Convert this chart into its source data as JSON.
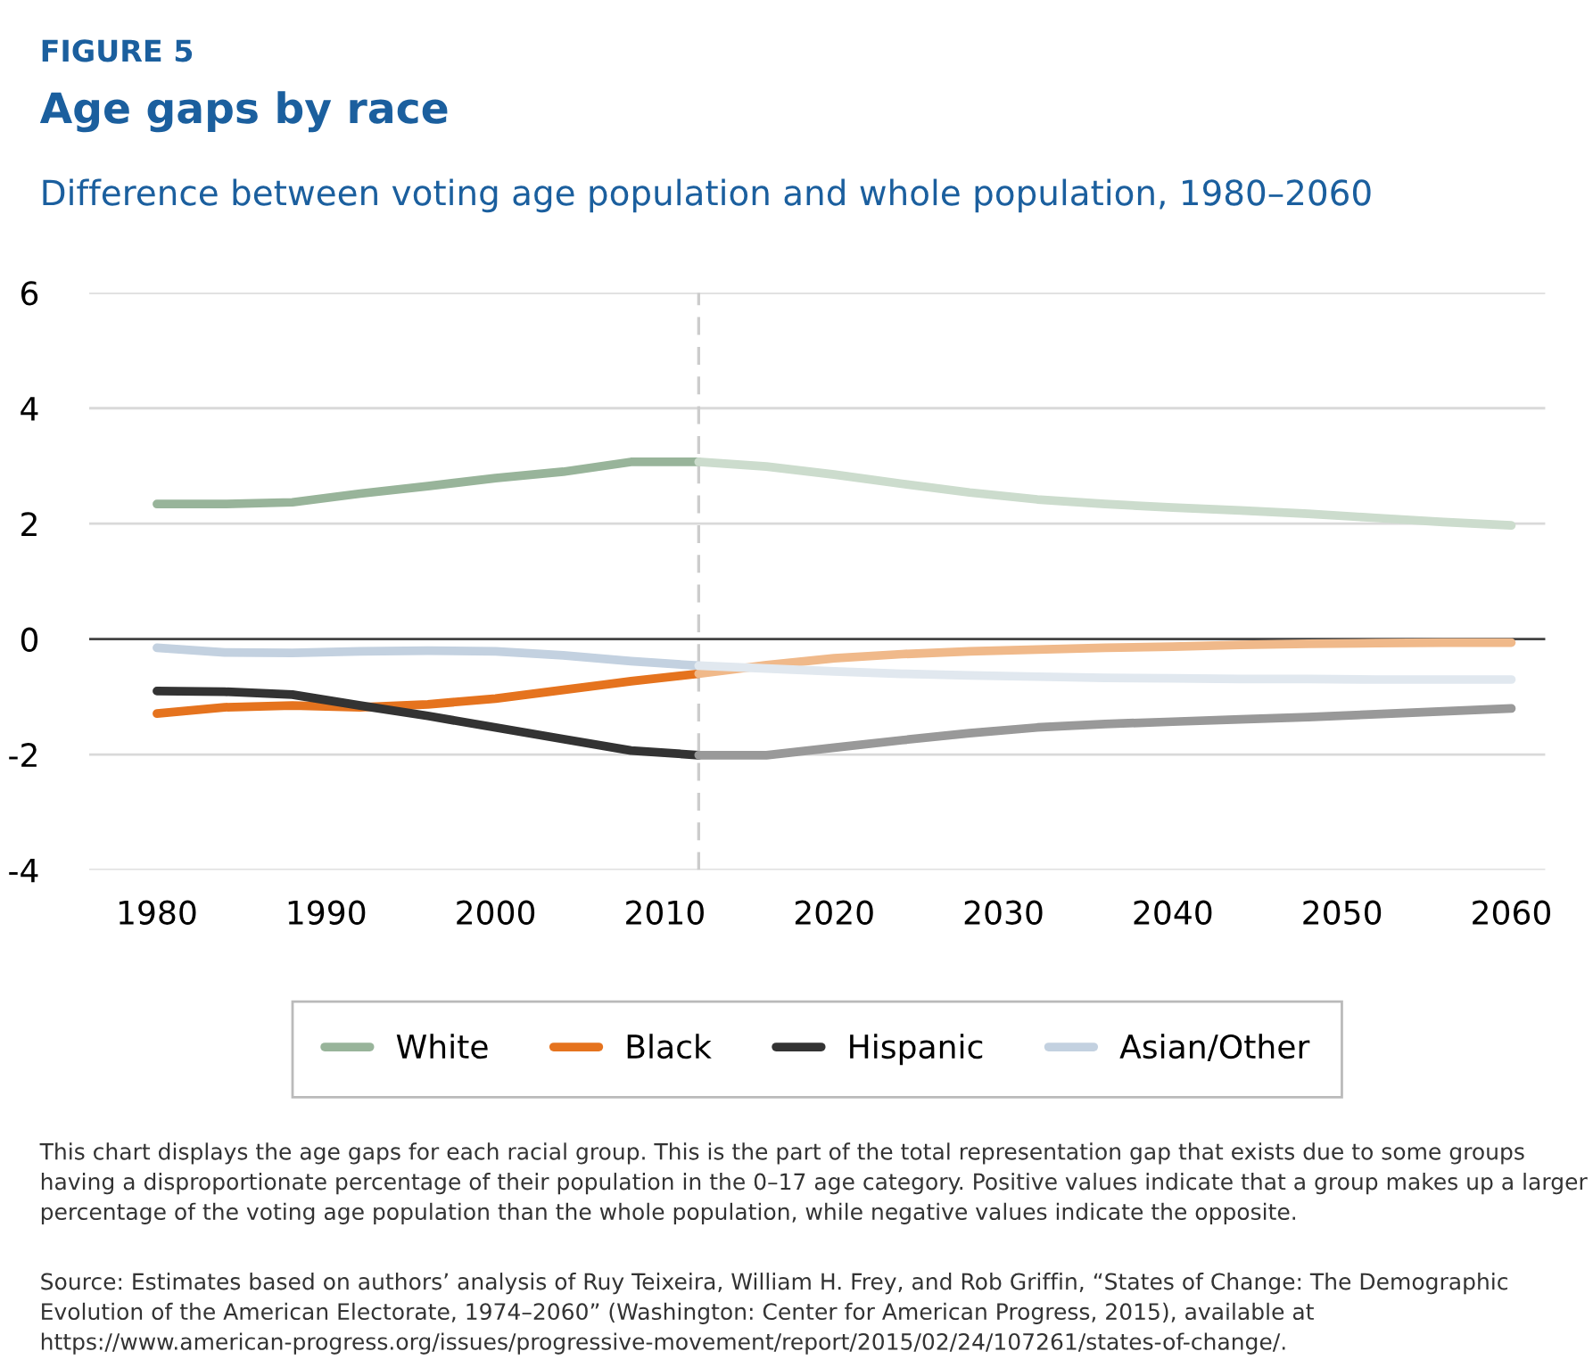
{
  "chart_data": {
    "type": "line",
    "title": "Age gaps by race",
    "subtitle": "Difference between voting age population and whole population, 1980–2060",
    "annotations": [
      "FIGURE 5",
      "This chart displays the age gaps for each racial group. This is the part of the total representation gap that exists due to some groups having a disproportionate percentage of their population in the 0–17 age category. Positive values indicate that a group makes up a larger percentage of the voting age population than the whole population, while negative values indicate the opposite.",
      "Source: Estimates based on authors’ analysis of Ruy Teixeira, William H. Frey, and Rob Griffin, “States of Change: The Demographic Evolution of the American Electorate, 1974–2060” (Washington: Center for American Progress, 2015), available at https://www.american-progress.org/issues/progressive-movement/report/2015/02/24/107261/states-of-change/."
    ],
    "series": [
      {
        "name": "White",
        "color": "#98b49a",
        "x": [
          1980,
          1984,
          1988,
          1992,
          1996,
          2000,
          2004,
          2008,
          2012
        ],
        "values": [
          2.34,
          2.34,
          2.37,
          2.52,
          2.65,
          2.79,
          2.9,
          3.07,
          3.07
        ]
      },
      {
        "name": "Black",
        "color": "#e5731e",
        "x": [
          1980,
          1984,
          1988,
          1992,
          1996,
          2000,
          2004,
          2008,
          2012
        ],
        "values": [
          -1.29,
          -1.18,
          -1.15,
          -1.18,
          -1.13,
          -1.03,
          -0.88,
          -0.73,
          -0.6
        ]
      },
      {
        "name": "Hispanic",
        "color": "#333333",
        "x": [
          1980,
          1984,
          1988,
          1992,
          1996,
          2000,
          2004,
          2008,
          2012
        ],
        "values": [
          -0.9,
          -0.91,
          -0.96,
          -1.15,
          -1.33,
          -1.53,
          -1.73,
          -1.93,
          -2.01
        ]
      },
      {
        "name": "Asian/Other",
        "color": "#c3d1e0",
        "x": [
          1980,
          1984,
          1988,
          1992,
          1996,
          2000,
          2004,
          2008,
          2012
        ],
        "values": [
          -0.15,
          -0.23,
          -0.24,
          -0.21,
          -0.2,
          -0.21,
          -0.28,
          -0.38,
          -0.46
        ]
      },
      {
        "color": "#ccdccd",
        "x": [
          2012,
          2016,
          2020,
          2024,
          2028,
          2032,
          2036,
          2040,
          2044,
          2048,
          2052,
          2056,
          2060
        ],
        "values": [
          3.07,
          2.99,
          2.85,
          2.69,
          2.54,
          2.42,
          2.34,
          2.28,
          2.23,
          2.17,
          2.1,
          2.03,
          1.97
        ]
      },
      {
        "color": "#f0b98a",
        "x": [
          2012,
          2016,
          2020,
          2024,
          2028,
          2032,
          2036,
          2040,
          2044,
          2048,
          2052,
          2056,
          2060
        ],
        "values": [
          -0.6,
          -0.45,
          -0.33,
          -0.26,
          -0.21,
          -0.18,
          -0.15,
          -0.13,
          -0.1,
          -0.08,
          -0.07,
          -0.06,
          -0.06
        ]
      },
      {
        "color": "#999999",
        "x": [
          2012,
          2016,
          2020,
          2024,
          2028,
          2032,
          2036,
          2040,
          2044,
          2048,
          2052,
          2056,
          2060
        ],
        "values": [
          -2.01,
          -2.01,
          -1.88,
          -1.75,
          -1.63,
          -1.53,
          -1.47,
          -1.43,
          -1.39,
          -1.35,
          -1.3,
          -1.25,
          -1.2
        ]
      },
      {
        "color": "#e1e8ef",
        "x": [
          2012,
          2016,
          2020,
          2024,
          2028,
          2032,
          2036,
          2040,
          2044,
          2048,
          2052,
          2056,
          2060
        ],
        "values": [
          -0.46,
          -0.51,
          -0.56,
          -0.6,
          -0.63,
          -0.65,
          -0.67,
          -0.68,
          -0.69,
          -0.69,
          -0.7,
          -0.7,
          -0.7
        ]
      }
    ],
    "xlim": [
      1976,
      2062
    ],
    "xticks": [
      1980,
      1990,
      2000,
      2010,
      2020,
      2030,
      2040,
      2050,
      2060
    ],
    "ylim": [
      -4,
      6
    ],
    "yticks": [
      -4,
      -2,
      0,
      2,
      4,
      6
    ],
    "ref_lines": [
      {
        "axis": "x",
        "value": 2012,
        "color": "#cccccc",
        "line_style": "dashed"
      },
      {
        "axis": "y",
        "value": 0,
        "color": "#444444",
        "line_style": "solid"
      }
    ],
    "grid": "y",
    "legend": "bottom",
    "marker": "none",
    "line_style": "solid"
  }
}
